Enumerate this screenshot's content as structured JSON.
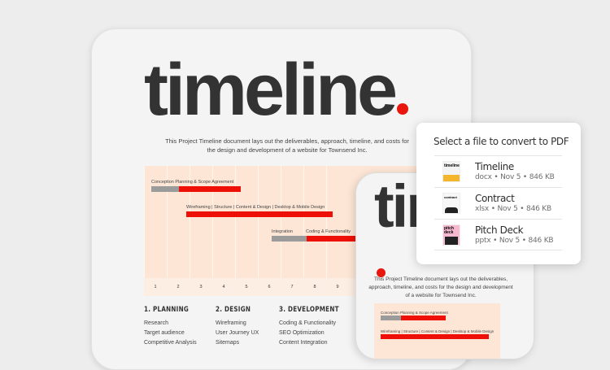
{
  "document": {
    "title": "timeline",
    "description": "This Project Timeline document lays out the deliverables, approach, timeline, and costs for the design and development of a website for Townsend Inc.",
    "chart": {
      "rows": [
        {
          "labels": "Conception   Planning & Scope Agreement"
        },
        {
          "labels": "Wireframing  |  Structure  |  Content & Design  |  Desktop & Mobile Design"
        },
        {
          "labels_a": "Integration",
          "labels_b": "Coding & Functionality"
        }
      ],
      "columns": [
        "1",
        "2",
        "3",
        "4",
        "5",
        "6",
        "7",
        "8",
        "9"
      ]
    },
    "sections": [
      {
        "heading": "1. PLANNING",
        "items": [
          "Research",
          "Target audience",
          "Competitive Analysis"
        ]
      },
      {
        "heading": "2. DESIGN",
        "items": [
          "Wireframing",
          "User Journey UX",
          "Sitemaps"
        ]
      },
      {
        "heading": "3. DEVELOPMENT",
        "items": [
          "Coding & Functionality",
          "SEO Optimization",
          "Content Integration"
        ]
      }
    ]
  },
  "phone": {
    "title": "timeline",
    "description": "This Project Timeline document lays out the deliverables, approach, timeline, and costs for the design and development of a website for Townsend Inc.",
    "row1": "Conception   Planning & Scope Agreement",
    "row2": "Wireframing | Structure | Content & Design | Desktop & Mobile Design"
  },
  "popup": {
    "title": "Select a file to convert to PDF",
    "files": [
      {
        "name": "Timeline",
        "meta": "docx  •  Nov 5  •  846 KB",
        "thumb_color": "#f5b52a"
      },
      {
        "name": "Contract",
        "meta": "xlsx  •  Nov 5  •  846 KB",
        "thumb_color": "#222222"
      },
      {
        "name": "Pitch Deck",
        "meta": "pptx  •  Nov 5  •  846 KB",
        "thumb_color": "#f7b8d0"
      }
    ]
  },
  "colors": {
    "accent": "#e8160c",
    "chart_bg": "#fde6d6",
    "bar_gray": "#9b9b9b"
  }
}
